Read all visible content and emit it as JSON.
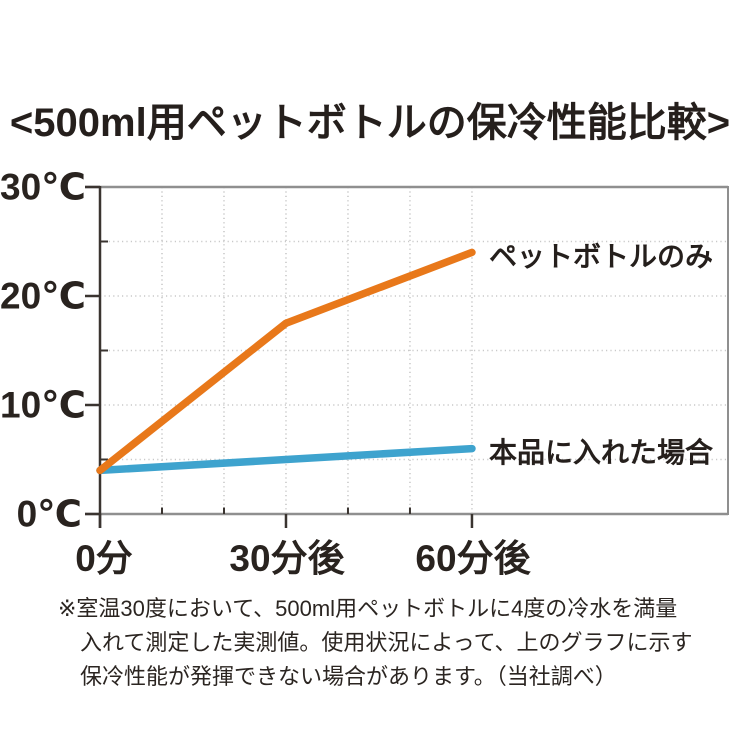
{
  "page": {
    "title": "<500ml用ペットボトルの保冷性能比較>"
  },
  "chart_data": {
    "type": "line",
    "title": "<500ml用ペットボトルの保冷性能比較>",
    "x": [
      0,
      30,
      60
    ],
    "x_tick_labels": [
      "0分",
      "30分後",
      "60分後"
    ],
    "y_tick_labels": [
      "0℃",
      "10℃",
      "20℃",
      "30℃"
    ],
    "y_ticks_major": [
      0,
      10,
      20,
      30
    ],
    "y_ticks_minor": [
      5,
      15,
      25
    ],
    "x_ticks_major": [
      0,
      30,
      60
    ],
    "x_ticks_minor": [
      10,
      20,
      40,
      50
    ],
    "x_gridlines": [
      10,
      20,
      30,
      40,
      50,
      60
    ],
    "y_gridlines": [
      5,
      10,
      15,
      20,
      25
    ],
    "xlim": [
      0,
      101.3
    ],
    "ylim": [
      0,
      30
    ],
    "grid": "dotted",
    "legend_position": "inline-right-of-line-end",
    "series": [
      {
        "name": "ペットボトルのみ",
        "values": [
          4,
          17.5,
          24
        ],
        "color": "#e8781a"
      },
      {
        "name": "本品に入れた場合",
        "values": [
          4,
          5,
          6
        ],
        "color": "#3ea3ce"
      }
    ]
  },
  "colors": {
    "axis_dark": "#3a3430",
    "border_gray": "#8f8f8f",
    "grid_dot": "#c9c9c9",
    "text": "#251f1c",
    "background": "#ffffff"
  },
  "footnote": {
    "lines": [
      "※室温30度において、500ml用ペットボトルに4度の冷水を満量",
      "入れて測定した実測値。使用状況によって、上のグラフに示す",
      "保冷性能が発揮できない場合があります。（当社調べ）"
    ]
  }
}
